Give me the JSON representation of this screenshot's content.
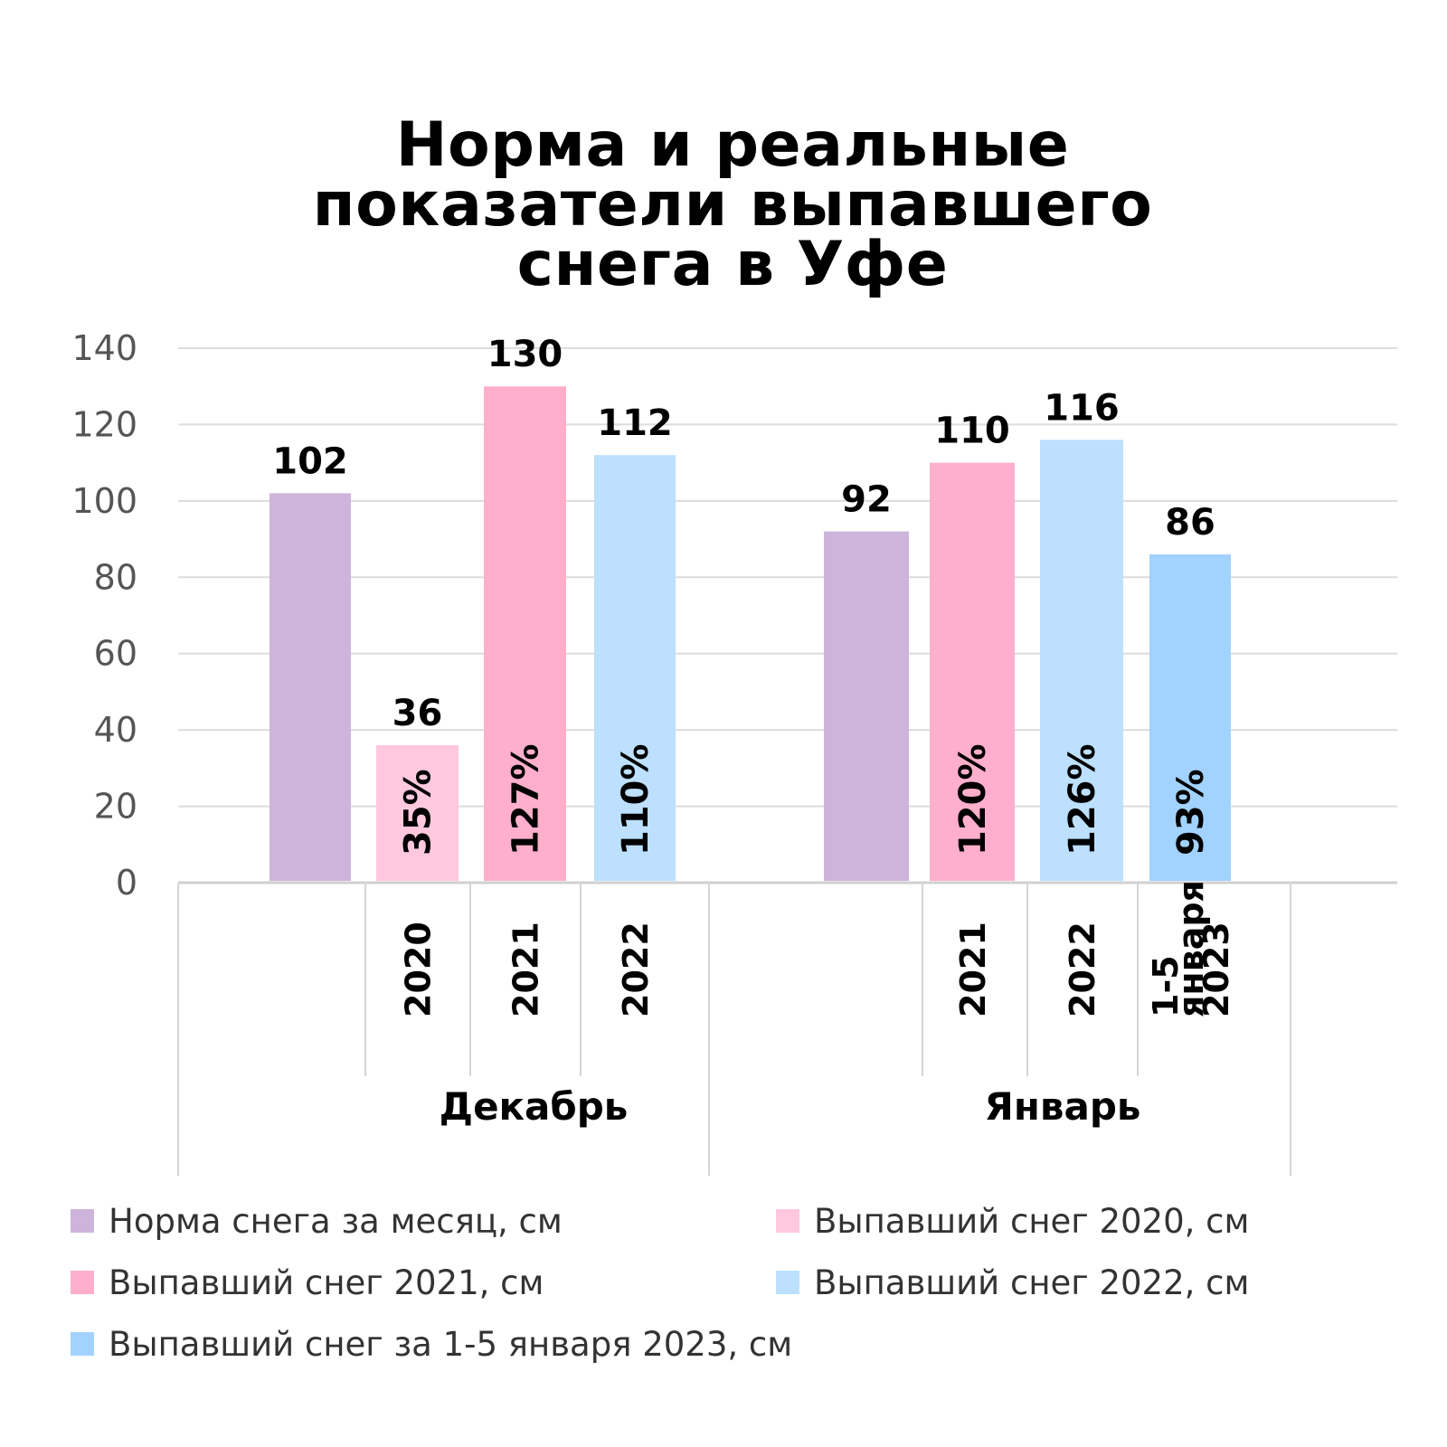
{
  "chart_data": {
    "type": "bar",
    "title": "Норма и реальные показатели выпавшего снега в Уфе",
    "title_lines": [
      "Норма и реальные",
      "показатели выпавшего",
      "снега в Уфе"
    ],
    "xlabel": "",
    "ylabel": "",
    "ylim": [
      0,
      140
    ],
    "yticks": [
      "0",
      "20",
      "40",
      "60",
      "80",
      "100",
      "120",
      "140"
    ],
    "grid": true,
    "legend_position": "bottom",
    "groups": [
      {
        "label": "Декабрь",
        "bars": [
          {
            "series": "Норма снега за месяц, см",
            "category": "",
            "value": 102,
            "value_label": "102",
            "pct_label": ""
          },
          {
            "series": "Выпавший снег 2020, см",
            "category": "2020",
            "value": 36,
            "value_label": "36",
            "pct_label": "35%"
          },
          {
            "series": "Выпавший снег 2021, см",
            "category": "2021",
            "value": 130,
            "value_label": "130",
            "pct_label": "127%"
          },
          {
            "series": "Выпавший снег 2022, см",
            "category": "2022",
            "value": 112,
            "value_label": "112",
            "pct_label": "110%"
          }
        ]
      },
      {
        "label": "Январь",
        "bars": [
          {
            "series": "Норма снега за месяц, см",
            "category": "",
            "value": 92,
            "value_label": "92",
            "pct_label": ""
          },
          {
            "series": "Выпавший снег 2021, см",
            "category": "2021",
            "value": 110,
            "value_label": "110",
            "pct_label": "120%"
          },
          {
            "series": "Выпавший снег 2022, см",
            "category": "2022",
            "value": 116,
            "value_label": "116",
            "pct_label": "126%"
          },
          {
            "series": "Выпавший снег за 1-5 января 2023, см",
            "category": "1-5 января 2023",
            "category_lines": [
              "1-5",
              "января",
              "2023"
            ],
            "value": 86,
            "value_label": "86",
            "pct_label": "93%"
          }
        ]
      }
    ],
    "legend": [
      {
        "label": "Норма снега за месяц, см",
        "color": "#cdb4db"
      },
      {
        "label": "Выпавший снег 2020, см",
        "color": "#ffc8dd"
      },
      {
        "label": "Выпавший снег 2021, см",
        "color": "#ffafcc"
      },
      {
        "label": "Выпавший снег 2022, см",
        "color": "#bde0fe"
      },
      {
        "label": "Выпавший снег за 1-5 января 2023, см",
        "color": "#a2d2ff"
      }
    ]
  }
}
